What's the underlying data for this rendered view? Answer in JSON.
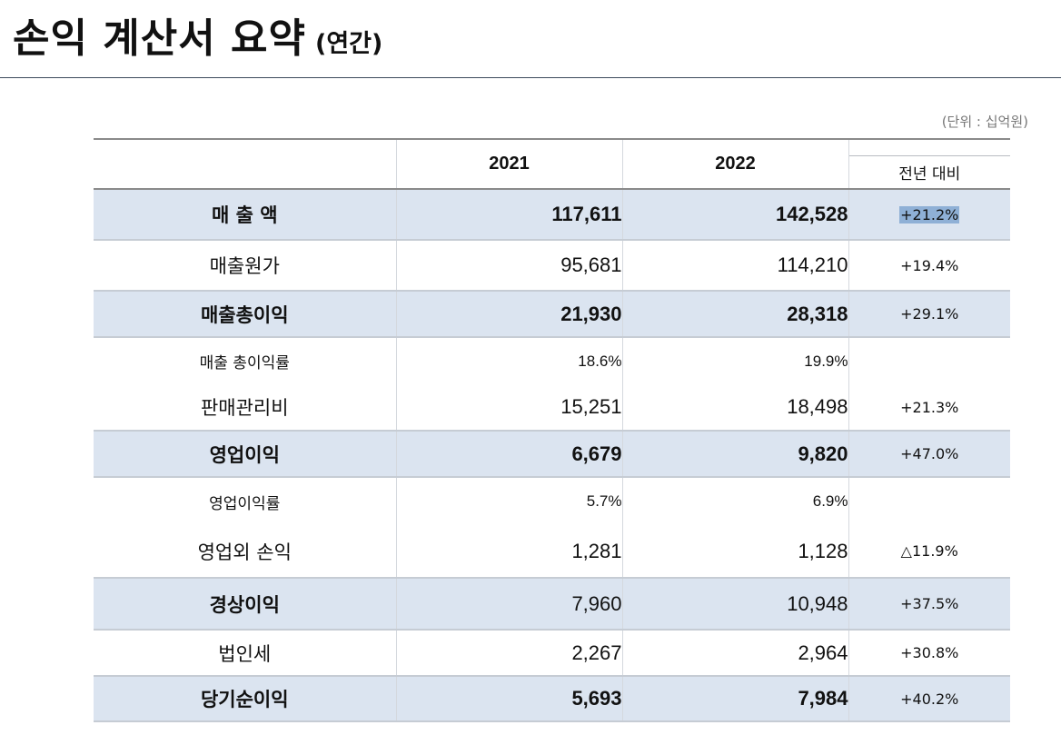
{
  "header": {
    "title": "손익 계산서 요약",
    "subtitle": "(연간)",
    "unit": "(단위 : 십억원)"
  },
  "table": {
    "columns": [
      "",
      "2021",
      "2022",
      "전년 대비"
    ],
    "rows": [
      {
        "label": "매 출 액",
        "y2021": "117,611",
        "y2022": "142,528",
        "yoy": "+21.2%"
      },
      {
        "label": "매출원가",
        "y2021": "95,681",
        "y2022": "114,210",
        "yoy": "+19.4%"
      },
      {
        "label": "매출총이익",
        "y2021": "21,930",
        "y2022": "28,318",
        "yoy": "+29.1%"
      },
      {
        "label": "매출 총이익률",
        "y2021": "18.6%",
        "y2022": "19.9%",
        "yoy": ""
      },
      {
        "label": "판매관리비",
        "y2021": "15,251",
        "y2022": "18,498",
        "yoy": "+21.3%"
      },
      {
        "label": "영업이익",
        "y2021": "6,679",
        "y2022": "9,820",
        "yoy": "+47.0%"
      },
      {
        "label": "영업이익률",
        "y2021": "5.7%",
        "y2022": "6.9%",
        "yoy": ""
      },
      {
        "label": "영업외 손익",
        "y2021": "1,281",
        "y2022": "1,128",
        "yoy": "△11.9%"
      },
      {
        "label": "경상이익",
        "y2021": "7,960",
        "y2022": "10,948",
        "yoy": "+37.5%"
      },
      {
        "label": "법인세",
        "y2021": "2,267",
        "y2022": "2,964",
        "yoy": "+30.8%"
      },
      {
        "label": "당기순이익",
        "y2021": "5,693",
        "y2022": "7,984",
        "yoy": "+40.2%"
      }
    ]
  },
  "colors": {
    "highlight_row": "#dbe4f0",
    "text_selection": "#8fb0d6",
    "rule": "#3c4a5c"
  }
}
